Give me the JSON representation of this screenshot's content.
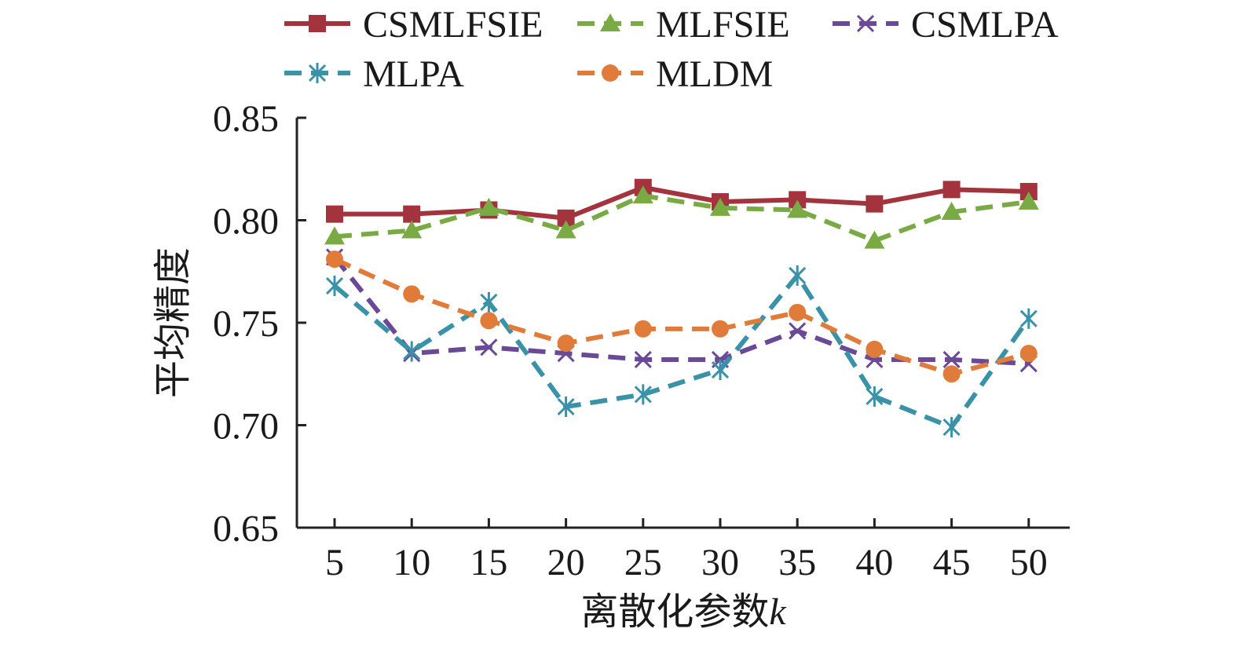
{
  "chart_data": {
    "type": "line",
    "title": "",
    "xlabel": "离散化参数",
    "xlabel_var": "k",
    "ylabel": "平均精度",
    "categories": [
      "5",
      "10",
      "15",
      "20",
      "25",
      "30",
      "35",
      "40",
      "45",
      "50"
    ],
    "x": [
      5,
      10,
      15,
      20,
      25,
      30,
      35,
      40,
      45,
      50
    ],
    "ylim": [
      0.65,
      0.85
    ],
    "yticks": [
      "0.65",
      "0.70",
      "0.75",
      "0.80",
      "0.85"
    ],
    "grid": false,
    "legend_position": "top",
    "series": [
      {
        "name": "CSMLFSIE",
        "color": "#a3333d",
        "marker": "square",
        "dash": "solid",
        "values": [
          0.803,
          0.803,
          0.805,
          0.801,
          0.816,
          0.809,
          0.81,
          0.808,
          0.815,
          0.814
        ]
      },
      {
        "name": "MLFSIE",
        "color": "#7aaa44",
        "marker": "triangle",
        "dash": "dashed",
        "values": [
          0.792,
          0.795,
          0.806,
          0.795,
          0.812,
          0.806,
          0.805,
          0.79,
          0.804,
          0.809
        ]
      },
      {
        "name": "CSMLPA",
        "color": "#6a4a96",
        "marker": "x",
        "dash": "dashed",
        "values": [
          0.782,
          0.735,
          0.738,
          0.735,
          0.732,
          0.732,
          0.746,
          0.732,
          0.732,
          0.73
        ]
      },
      {
        "name": "MLPA",
        "color": "#3a92a8",
        "marker": "star",
        "dash": "dashed",
        "values": [
          0.768,
          0.736,
          0.76,
          0.709,
          0.715,
          0.727,
          0.773,
          0.714,
          0.699,
          0.752
        ]
      },
      {
        "name": "MLDM",
        "color": "#e07b39",
        "marker": "circle",
        "dash": "dashed",
        "values": [
          0.781,
          0.764,
          0.751,
          0.74,
          0.747,
          0.747,
          0.755,
          0.737,
          0.725,
          0.735
        ]
      }
    ]
  }
}
